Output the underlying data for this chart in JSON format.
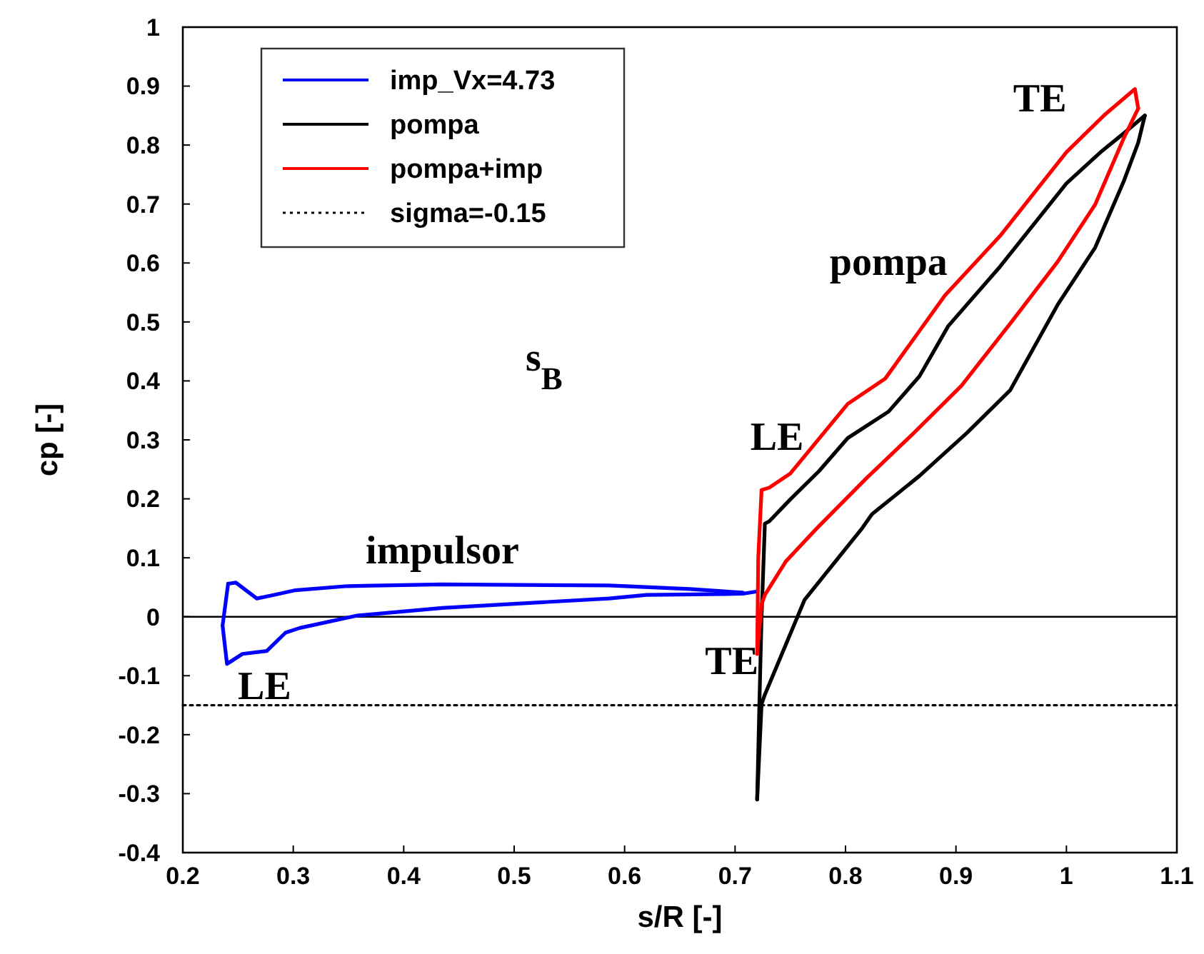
{
  "chart_data": {
    "type": "line",
    "xlabel": "s/R [-]",
    "ylabel": "cp [-]",
    "xlim": [
      0.2,
      1.1
    ],
    "xticks": [
      0.2,
      0.3,
      0.4,
      0.5,
      0.6,
      0.7,
      0.8,
      0.9,
      1,
      1.1
    ],
    "ylim": [
      -0.4,
      1
    ],
    "yticks": [
      -0.4,
      -0.3,
      -0.2,
      -0.1,
      0,
      0.1,
      0.2,
      0.3,
      0.4,
      0.5,
      0.6,
      0.7,
      0.8,
      0.9,
      1
    ],
    "grid": false,
    "legend": "top left",
    "marker": "none",
    "series": [
      {
        "name": "imp_Vx=4.73",
        "color": "#0000ff",
        "x": [
          0.241,
          0.248,
          0.267,
          0.28,
          0.302,
          0.349,
          0.435,
          0.586,
          0.659,
          0.707
        ],
        "values": [
          0.056,
          0.058,
          0.031,
          0.036,
          0.045,
          0.052,
          0.055,
          0.053,
          0.047,
          0.041
        ]
      },
      {
        "color": "#0000ff",
        "x": [
          0.241,
          0.236,
          0.24,
          0.254,
          0.276,
          0.293,
          0.306,
          0.358,
          0.435,
          0.586,
          0.62,
          0.707,
          0.72
        ],
        "values": [
          0.056,
          -0.015,
          -0.08,
          -0.063,
          -0.058,
          -0.027,
          -0.019,
          0.002,
          0.015,
          0.031,
          0.037,
          0.039,
          0.043
        ]
      },
      {
        "name": "pompa",
        "color": "#000000",
        "x": [
          0.72,
          0.722,
          0.724,
          0.727,
          0.731,
          0.75,
          0.776,
          0.802,
          0.839,
          0.867,
          0.893,
          0.94,
          1.0,
          1.031,
          1.052,
          1.071
        ],
        "values": [
          -0.31,
          -0.15,
          0.0,
          0.158,
          0.162,
          0.199,
          0.247,
          0.303,
          0.348,
          0.408,
          0.493,
          0.594,
          0.735,
          0.788,
          0.82,
          0.85
        ]
      },
      {
        "color": "#000000",
        "x": [
          0.72,
          0.724,
          0.727,
          0.763,
          0.815,
          0.824,
          0.867,
          0.91,
          0.949,
          0.992,
          1.026,
          1.052,
          1.065,
          1.071
        ],
        "values": [
          -0.31,
          -0.148,
          -0.132,
          0.029,
          0.15,
          0.174,
          0.239,
          0.312,
          0.384,
          0.529,
          0.626,
          0.739,
          0.804,
          0.85
        ]
      },
      {
        "name": "pompa+imp",
        "color": "#ff0000",
        "x": [
          0.72,
          0.721,
          0.724,
          0.731,
          0.75,
          0.802,
          0.836,
          0.89,
          0.94,
          1.0,
          1.035,
          1.062,
          1.065
        ],
        "values": [
          -0.063,
          0.1,
          0.215,
          0.219,
          0.243,
          0.361,
          0.404,
          0.545,
          0.646,
          0.788,
          0.852,
          0.895,
          0.862
        ]
      },
      {
        "color": "#ff0000",
        "x": [
          0.72,
          0.724,
          0.727,
          0.746,
          0.774,
          0.819,
          0.862,
          0.905,
          0.949,
          0.992,
          1.026,
          1.052,
          1.065
        ],
        "values": [
          -0.063,
          0.021,
          0.037,
          0.094,
          0.15,
          0.235,
          0.312,
          0.392,
          0.497,
          0.602,
          0.699,
          0.812,
          0.862
        ]
      },
      {
        "name": "sigma=-0.15",
        "color": "#000000",
        "line_style": "dotted",
        "x": [
          0.2,
          1.1
        ],
        "values": [
          -0.15,
          -0.15
        ]
      }
    ],
    "ref_lines": [
      {
        "axis": "y",
        "value": 0,
        "color": "#000000"
      }
    ],
    "annotations": [
      "impulsor",
      "LE",
      "TE",
      "LE",
      "pompa",
      "TE",
      "s$_{B}$"
    ]
  }
}
